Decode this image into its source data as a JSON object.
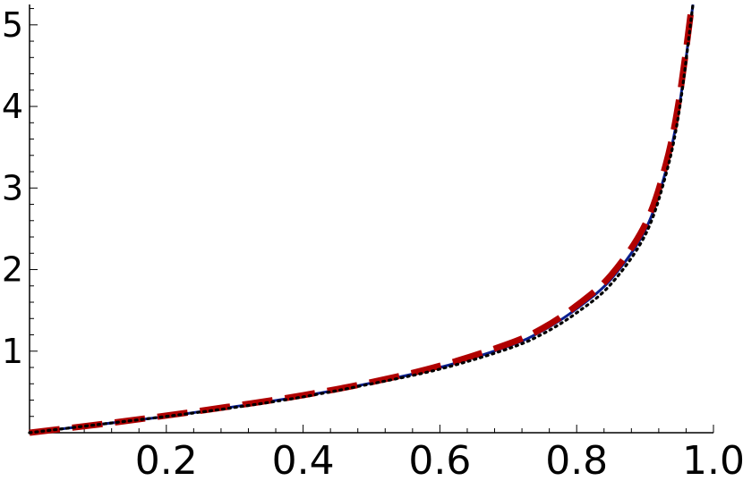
{
  "chart_data": {
    "type": "line",
    "title": "",
    "xlabel": "",
    "ylabel": "",
    "xlim": [
      0,
      1.0
    ],
    "ylim": [
      0,
      5.25
    ],
    "grid": false,
    "legend": "none",
    "x_ticks": [
      "0.2",
      "0.4",
      "0.6",
      "0.8",
      "1.0"
    ],
    "y_ticks": [
      "1",
      "2",
      "3",
      "4",
      "5"
    ],
    "series": [
      {
        "style": "solid",
        "color": "#0a1f8f",
        "x": [
          0,
          0.1,
          0.2,
          0.3,
          0.4,
          0.5,
          0.6,
          0.7,
          0.75,
          0.8,
          0.85,
          0.9,
          0.93,
          0.95,
          0.97
        ],
        "y": [
          0,
          0.1,
          0.2,
          0.32,
          0.45,
          0.61,
          0.8,
          1.06,
          1.25,
          1.52,
          1.88,
          2.48,
          3.2,
          4.0,
          5.25
        ]
      },
      {
        "style": "dotted",
        "color": "#000000",
        "x": [
          0,
          0.1,
          0.2,
          0.3,
          0.4,
          0.5,
          0.6,
          0.7,
          0.75,
          0.8,
          0.85,
          0.9,
          0.93,
          0.95,
          0.97
        ],
        "y": [
          0,
          0.1,
          0.2,
          0.31,
          0.44,
          0.6,
          0.78,
          1.03,
          1.21,
          1.47,
          1.82,
          2.42,
          3.15,
          3.95,
          5.25
        ]
      },
      {
        "style": "dashed",
        "color": "#b00000",
        "x": [
          0,
          0.1,
          0.2,
          0.3,
          0.4,
          0.5,
          0.6,
          0.7,
          0.75,
          0.8,
          0.85,
          0.9,
          0.93,
          0.95,
          0.97
        ],
        "y": [
          0,
          0.1,
          0.21,
          0.33,
          0.46,
          0.62,
          0.82,
          1.09,
          1.28,
          1.56,
          1.93,
          2.55,
          3.28,
          4.1,
          5.35
        ]
      }
    ]
  }
}
